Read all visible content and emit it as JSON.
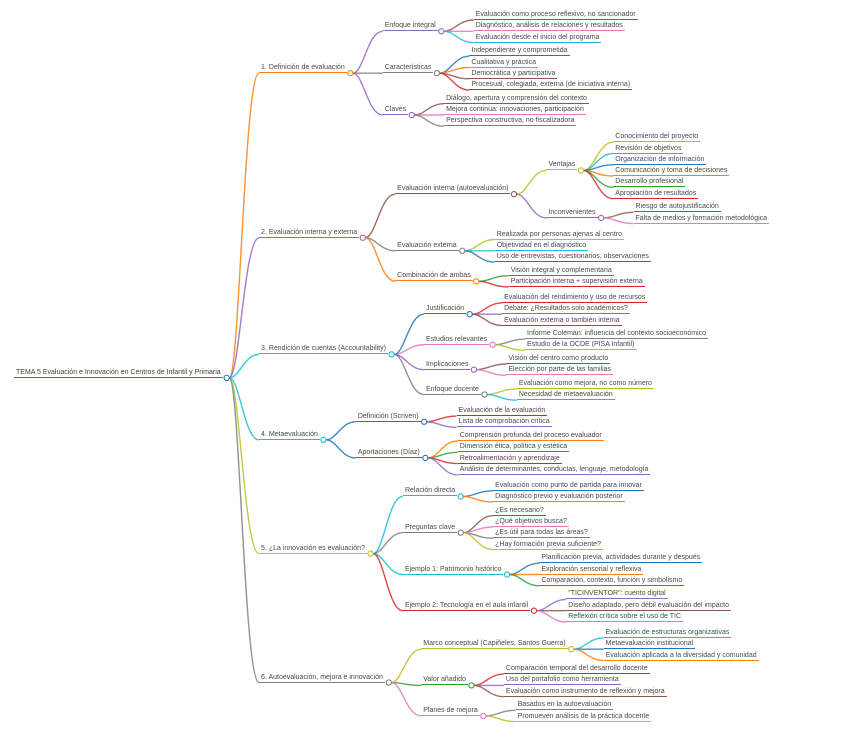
{
  "page": {
    "background": "#ffffff",
    "text_color": "#4a4a4a",
    "diagram_type": "mindmap"
  },
  "mindmap": {
    "root": {
      "text": "TEMA 5 Evaluación e Innovación en Centros de Infantil y Primaria",
      "color": "#1f77b4",
      "children": [
        {
          "text": "1. Definición de evaluación",
          "color": "#ff7f0e",
          "children": [
            {
              "text": "Enfoque integral",
              "color": "#9467bd",
              "children": [
                {
                  "text": "Evaluación como proceso reflexivo, no sancionador",
                  "color": "#8c564b"
                },
                {
                  "text": "Diagnóstico, análisis de relaciones y resultados",
                  "color": "#e377c2"
                },
                {
                  "text": "Evaluación desde el inicio del programa",
                  "color": "#17becf"
                }
              ]
            },
            {
              "text": "Características",
              "color": "#7f7f7f",
              "children": [
                {
                  "text": "Independiente y comprometida",
                  "color": "#1f77b4"
                },
                {
                  "text": "Cualitativa y práctica",
                  "color": "#ff7f0e"
                },
                {
                  "text": "Democrática y participativa",
                  "color": "#8c564b"
                },
                {
                  "text": "Procesual, colegiada, externa (de iniciativa interna)",
                  "color": "#d62728"
                }
              ]
            },
            {
              "text": "Claves",
              "color": "#9467bd",
              "children": [
                {
                  "text": "Diálogo, apertura y comprensión del contexto",
                  "color": "#8c564b"
                },
                {
                  "text": "Mejora continua: innovaciones, participación",
                  "color": "#e377c2"
                },
                {
                  "text": "Perspectiva constructiva, no fiscalizadora",
                  "color": "#7f7f7f"
                }
              ]
            }
          ]
        },
        {
          "text": "2. Evaluación interna y externa",
          "color": "#9467bd",
          "children": [
            {
              "text": "Evaluación interna (autoevaluación)",
              "color": "#8c564b",
              "children": [
                {
                  "text": "Ventajas",
                  "color": "#bcbd22",
                  "children": [
                    {
                      "text": "Conocimiento del proyecto",
                      "color": "#bcbd22"
                    },
                    {
                      "text": "Revisión de objetivos",
                      "color": "#17becf"
                    },
                    {
                      "text": "Organización de información",
                      "color": "#1f77b4"
                    },
                    {
                      "text": "Comunicación y toma de decisiones",
                      "color": "#ff7f0e"
                    },
                    {
                      "text": "Desarrollo profesional",
                      "color": "#2ca02c"
                    },
                    {
                      "text": "Apropiación de resultados",
                      "color": "#d62728"
                    }
                  ]
                },
                {
                  "text": "Inconvenientes",
                  "color": "#9467bd",
                  "children": [
                    {
                      "text": "Riesgo de autojustificación",
                      "color": "#8c564b"
                    },
                    {
                      "text": "Falta de medios y formación metodológica",
                      "color": "#e377c2"
                    }
                  ]
                }
              ]
            },
            {
              "text": "Evaluación externa",
              "color": "#7f7f7f",
              "children": [
                {
                  "text": "Realizada por personas ajenas al centro",
                  "color": "#bcbd22"
                },
                {
                  "text": "Objetividad en el diagnóstico",
                  "color": "#17becf"
                },
                {
                  "text": "Uso de entrevistas, cuestionarios, observaciones",
                  "color": "#1f77b4"
                }
              ]
            },
            {
              "text": "Combinación de ambas",
              "color": "#ff7f0e",
              "children": [
                {
                  "text": "Visión integral y complementaria",
                  "color": "#2ca02c"
                },
                {
                  "text": "Participación interna + supervisión externa",
                  "color": "#d62728"
                }
              ]
            }
          ]
        },
        {
          "text": "3. Rendición de cuentas (Accountability)",
          "color": "#17becf",
          "children": [
            {
              "text": "Justificación",
              "color": "#1f77b4",
              "children": [
                {
                  "text": "Evaluación del rendimiento y uso de recursos",
                  "color": "#d62728"
                },
                {
                  "text": "Debate: ¿Resultados solo académicos?",
                  "color": "#9467bd"
                },
                {
                  "text": "Evaluación externa o también interna",
                  "color": "#8c564b"
                }
              ]
            },
            {
              "text": "Estudios relevantes",
              "color": "#e377c2",
              "children": [
                {
                  "text": "Informe Coleman: influencia del contexto socioeconómico",
                  "color": "#7f7f7f"
                },
                {
                  "text": "Estudio de la OCDE (PISA Infantil)",
                  "color": "#bcbd22"
                }
              ]
            },
            {
              "text": "Implicaciones",
              "color": "#9467bd",
              "children": [
                {
                  "text": "Visión del centro como producto",
                  "color": "#8c564b"
                },
                {
                  "text": "Elección por parte de las familias",
                  "color": "#e377c2"
                }
              ]
            },
            {
              "text": "Enfoque docente",
              "color": "#7f7f7f",
              "children": [
                {
                  "text": "Evaluación como mejora, no como número",
                  "color": "#bcbd22"
                },
                {
                  "text": "Necesidad de metaevaluación",
                  "color": "#17becf"
                }
              ]
            }
          ]
        },
        {
          "text": "4. Metaevaluación",
          "color": "#17becf",
          "children": [
            {
              "text": "Definición (Scriven)",
              "color": "#1f77b4",
              "children": [
                {
                  "text": "Evaluación de la evaluación",
                  "color": "#d62728"
                },
                {
                  "text": "Lista de comprobación crítica",
                  "color": "#9467bd"
                }
              ]
            },
            {
              "text": "Aportaciones (Díaz)",
              "color": "#1f77b4",
              "children": [
                {
                  "text": "Comprensión profunda del proceso evaluador",
                  "color": "#ff7f0e"
                },
                {
                  "text": "Dimensión ética, política y estética",
                  "color": "#2ca02c"
                },
                {
                  "text": "Retroalimentación y aprendizaje",
                  "color": "#d62728"
                },
                {
                  "text": "Análisis de determinantes, conductas, lenguaje, metodología",
                  "color": "#9467bd"
                }
              ]
            }
          ]
        },
        {
          "text": "5. ¿La innovación es evaluación?",
          "color": "#bcbd22",
          "children": [
            {
              "text": "Relación directa",
              "color": "#17becf",
              "children": [
                {
                  "text": "Evaluación como punto de partida para innovar",
                  "color": "#1f77b4"
                },
                {
                  "text": "Diagnóstico previo y evaluación posterior",
                  "color": "#ff7f0e"
                }
              ]
            },
            {
              "text": "Preguntas clave",
              "color": "#7f7f7f",
              "children": [
                {
                  "text": "¿Es necesario?",
                  "color": "#8c564b"
                },
                {
                  "text": "¿Qué objetivos busca?",
                  "color": "#e377c2"
                },
                {
                  "text": "¿Es útil para todas las áreas?",
                  "color": "#7f7f7f"
                },
                {
                  "text": "¿Hay formación previa suficiente?",
                  "color": "#bcbd22"
                }
              ]
            },
            {
              "text": "Ejemplo 1: Patrimonio histórico",
              "color": "#17becf",
              "children": [
                {
                  "text": "Planificación previa, actividades durante y después",
                  "color": "#1f77b4"
                },
                {
                  "text": "Exploración sensorial y reflexiva",
                  "color": "#ff7f0e"
                },
                {
                  "text": "Comparación, contexto, función y simbolismo",
                  "color": "#2ca02c"
                }
              ]
            },
            {
              "text": "Ejemplo 2: Tecnología en el aula infantil",
              "color": "#d62728",
              "children": [
                {
                  "text": "\"TICINVENTOR\": cuento digital",
                  "color": "#9467bd"
                },
                {
                  "text": "Diseño adaptado, pero débil evaluación del impacto",
                  "color": "#8c564b"
                },
                {
                  "text": "Reflexión crítica sobre el uso de TIC",
                  "color": "#e377c2"
                }
              ]
            }
          ]
        },
        {
          "text": "6. Autoevaluación, mejora e innovación",
          "color": "#7f7f7f",
          "children": [
            {
              "text": "Marco conceptual (Capiñeles, Santos Guerra)",
              "color": "#bcbd22",
              "children": [
                {
                  "text": "Evaluación de estructuras organizativas",
                  "color": "#17becf"
                },
                {
                  "text": "Metaevaluación institucional",
                  "color": "#1f77b4"
                },
                {
                  "text": "Evaluación aplicada a la diversidad y comunidad",
                  "color": "#ff7f0e"
                }
              ]
            },
            {
              "text": "Valor añadido",
              "color": "#2ca02c",
              "children": [
                {
                  "text": "Comparación temporal del desarrollo docente",
                  "color": "#d62728"
                },
                {
                  "text": "Uso del portafolio como herramienta",
                  "color": "#9467bd"
                },
                {
                  "text": "Evaluación como instrumento de reflexión y mejora",
                  "color": "#8c564b"
                }
              ]
            },
            {
              "text": "Planes de mejora",
              "color": "#e377c2",
              "children": [
                {
                  "text": "Basados en la autoevaluación",
                  "color": "#7f7f7f"
                },
                {
                  "text": "Promueven análisis de la práctica docente",
                  "color": "#bcbd22"
                }
              ]
            }
          ]
        }
      ]
    }
  }
}
